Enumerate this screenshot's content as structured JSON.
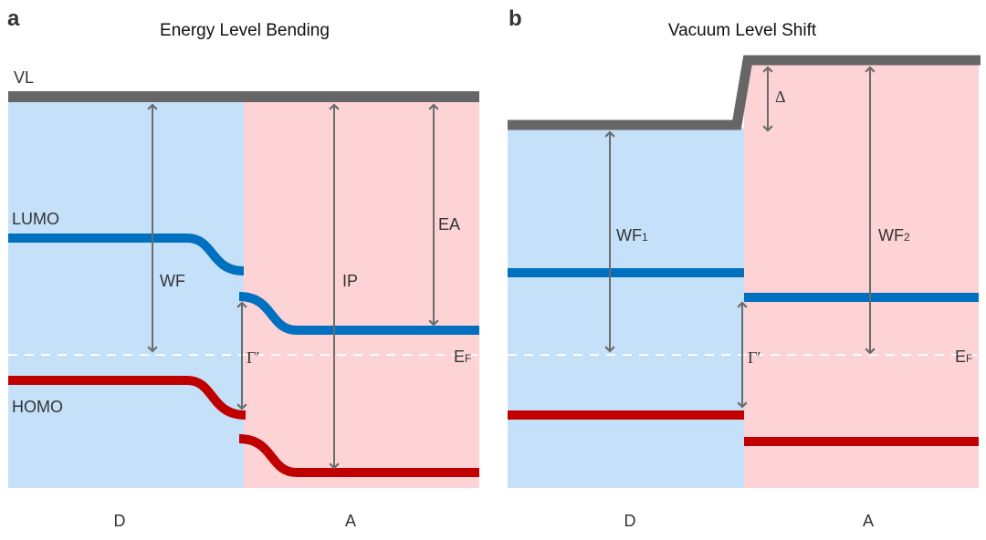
{
  "panel_a": {
    "letter": "a",
    "title": "Energy Level Bending",
    "vl": "VL",
    "lumo": "LUMO",
    "homo": "HOMO",
    "wf": "WF",
    "ip": "IP",
    "ea": "EA",
    "ef_main": "E",
    "ef_sub": "F",
    "gamma": "Γ′",
    "donor": "D",
    "acceptor": "A"
  },
  "panel_b": {
    "letter": "b",
    "title": "Vacuum Level Shift",
    "delta": "Δ",
    "wf1_main": "WF",
    "wf1_sub": "1",
    "wf2_main": "WF",
    "wf2_sub": "2",
    "ef_main": "E",
    "ef_sub": "F",
    "gamma": "Γ′",
    "donor": "D",
    "acceptor": "A"
  },
  "colors": {
    "donor_bg": "#c5e1fa",
    "acceptor_bg": "#fdd3d6",
    "vacuum_level": "#666666",
    "lumo": "#0070c0",
    "homo": "#c00000"
  }
}
